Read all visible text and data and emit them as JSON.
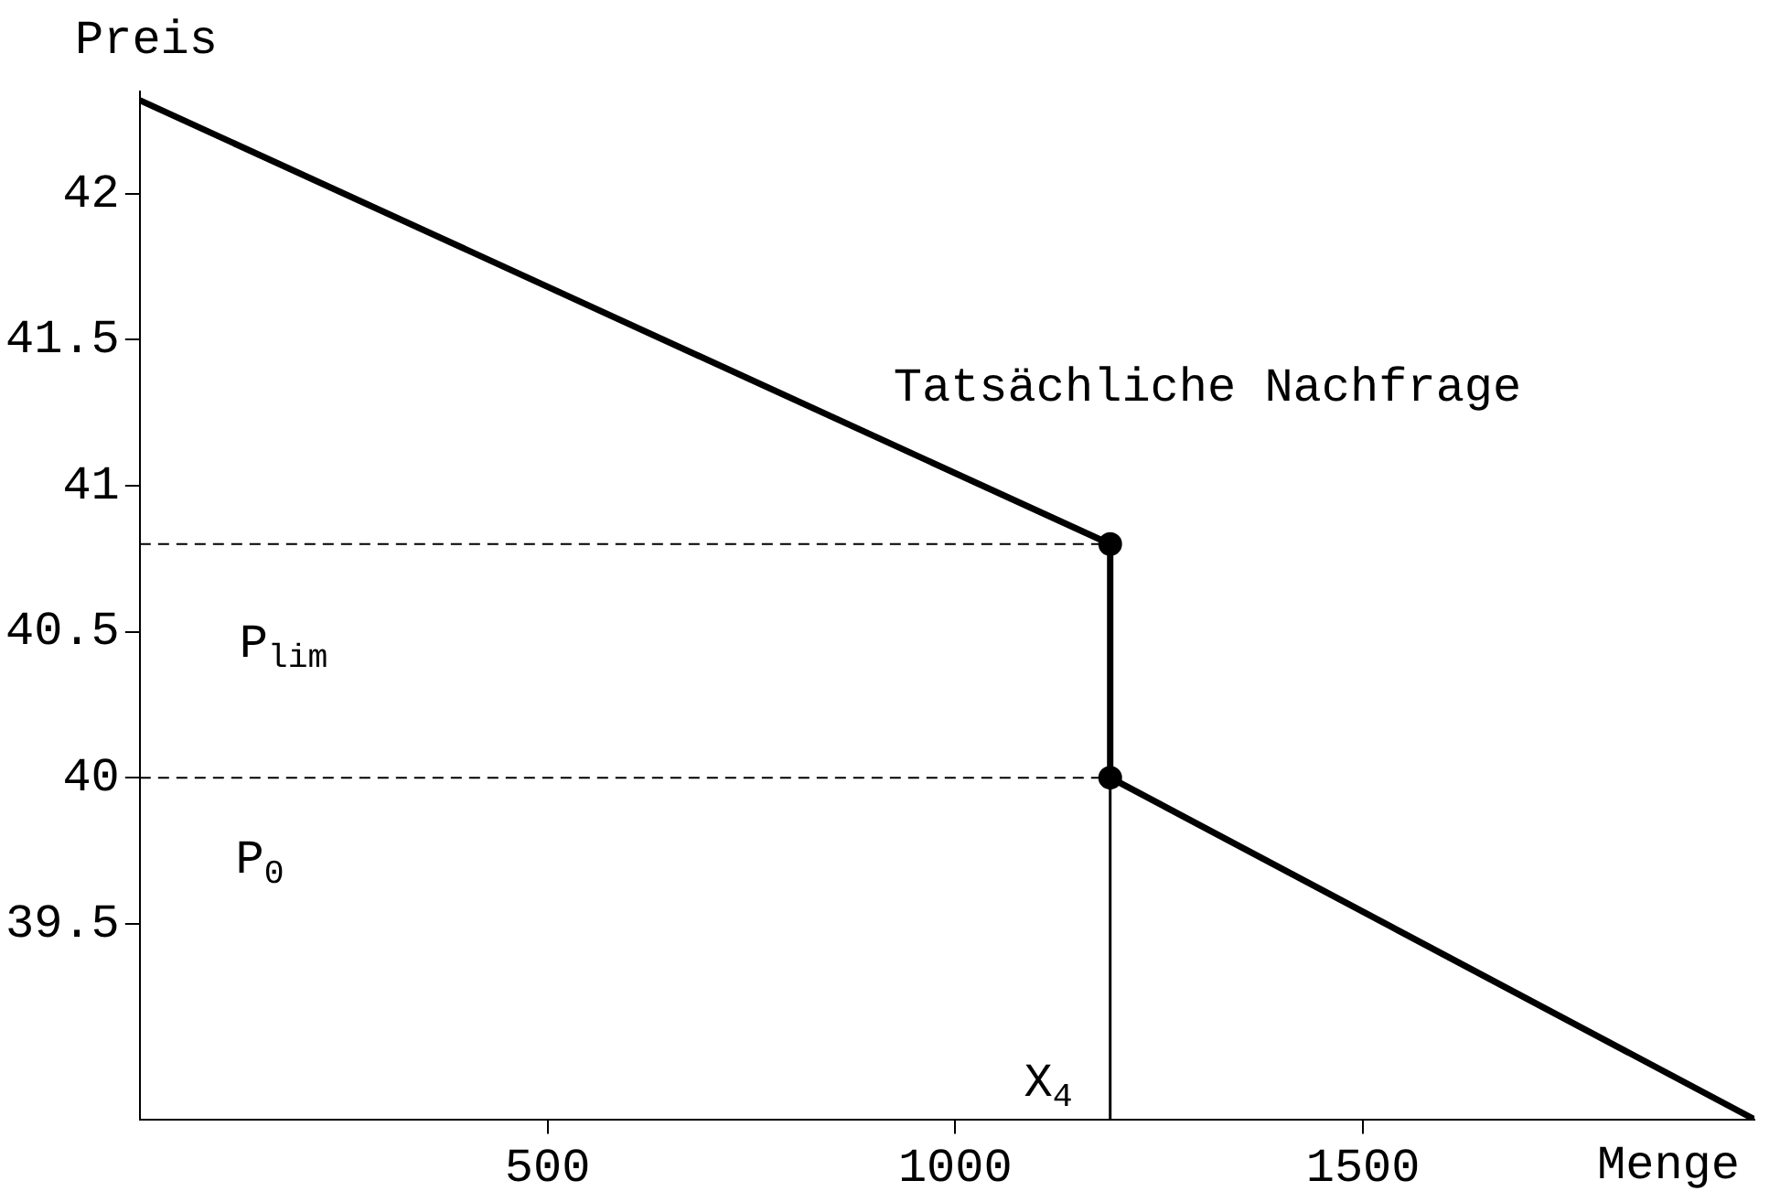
{
  "chart_data": {
    "type": "line",
    "xlabel": "Menge",
    "ylabel": "Preis",
    "xlim": [
      0,
      1980
    ],
    "ylim": [
      38.83,
      42.35
    ],
    "xticks": [
      500,
      1000,
      1500
    ],
    "yticks": [
      39.5,
      40,
      40.5,
      41,
      41.5,
      42
    ],
    "grid": false,
    "legend": false,
    "series": [
      {
        "color": "#000000",
        "x": [
          0,
          1190,
          1190,
          1980
        ],
        "values": [
          42.32,
          40.8,
          40,
          38.83
        ],
        "marker": "none",
        "line_style": "solid"
      },
      {
        "type": "line",
        "color": "#000000",
        "x": [
          0,
          1190
        ],
        "values": [
          40.8,
          40.8
        ],
        "marker": "none",
        "line_style": "dashed"
      },
      {
        "type": "line",
        "color": "#000000",
        "x": [
          0,
          1190
        ],
        "values": [
          40,
          40
        ],
        "marker": "none",
        "line_style": "dashed"
      },
      {
        "type": "line",
        "color": "#000000",
        "x": [
          1190,
          1190
        ],
        "values": [
          38.83,
          40
        ],
        "marker": "none",
        "line_style": "solid"
      },
      {
        "type": "scatter",
        "color": "#000000",
        "x": [
          1190,
          1190
        ],
        "values": [
          40.8,
          40
        ],
        "marker": "circle"
      }
    ],
    "annotations": [
      "Tatsächliche Nachfrage",
      "P$_{lim}$",
      "P$_{0}$",
      "X$_{4}$"
    ]
  }
}
